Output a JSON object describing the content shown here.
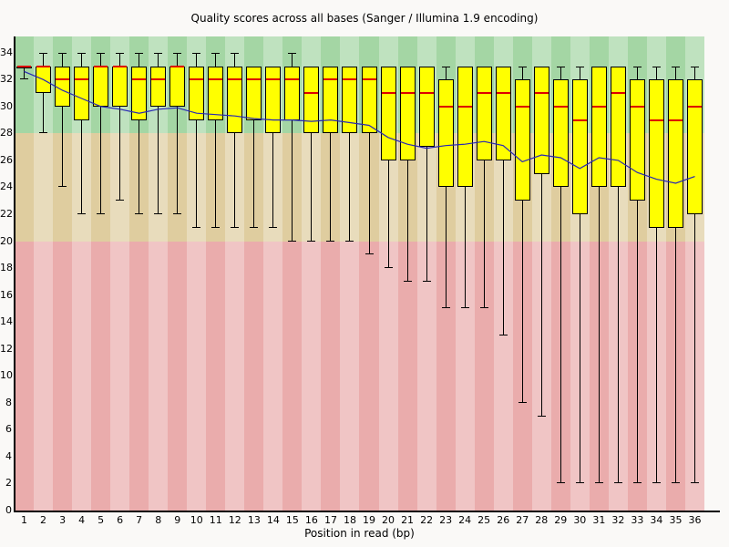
{
  "title": "Quality scores across all bases (Sanger / Illumina 1.9 encoding)",
  "chart_data": {
    "type": "boxplot",
    "title": "Quality scores across all bases (Sanger / Illumina 1.9 encoding)",
    "xlabel": "Position in read (bp)",
    "ylabel": "",
    "x": [
      1,
      2,
      3,
      4,
      5,
      6,
      7,
      8,
      9,
      10,
      11,
      12,
      13,
      14,
      15,
      16,
      17,
      18,
      19,
      20,
      21,
      22,
      23,
      24,
      25,
      26,
      27,
      28,
      29,
      30,
      31,
      32,
      33,
      34,
      35,
      36
    ],
    "y_ticks": [
      0,
      2,
      4,
      6,
      8,
      10,
      12,
      14,
      16,
      18,
      20,
      22,
      24,
      26,
      28,
      30,
      32,
      34
    ],
    "ylim": [
      0,
      35.2
    ],
    "grid": false,
    "legend_position": "none",
    "zones": [
      {
        "label": "good-quality-zone",
        "range": [
          28,
          35.2
        ],
        "color": "#a4d6a4"
      },
      {
        "label": "medium-quality-zone",
        "range": [
          20,
          28
        ],
        "color": "#dfcd9f"
      },
      {
        "label": "bad-quality-zone",
        "range": [
          0,
          20
        ],
        "color": "#eaacac"
      }
    ],
    "series": {
      "lower_whisker": [
        32,
        28,
        24,
        22,
        22,
        23,
        22,
        22,
        22,
        21,
        21,
        21,
        21,
        21,
        20,
        20,
        20,
        20,
        19,
        18,
        17,
        17,
        15,
        15,
        15,
        13,
        8,
        7,
        2,
        2,
        2,
        2,
        2,
        2,
        2,
        2
      ],
      "q1": [
        33,
        31,
        30,
        29,
        30,
        30,
        29,
        30,
        30,
        29,
        29,
        28,
        29,
        28,
        29,
        28,
        28,
        28,
        28,
        26,
        26,
        27,
        24,
        24,
        26,
        26,
        23,
        25,
        24,
        22,
        24,
        24,
        23,
        21,
        21,
        22
      ],
      "median": [
        33,
        33,
        32,
        32,
        33,
        33,
        32,
        32,
        33,
        32,
        32,
        32,
        32,
        32,
        32,
        31,
        32,
        32,
        32,
        31,
        31,
        31,
        30,
        30,
        31,
        31,
        30,
        31,
        30,
        29,
        30,
        31,
        30,
        29,
        29,
        30
      ],
      "q3": [
        33,
        33,
        33,
        33,
        33,
        33,
        33,
        33,
        33,
        33,
        33,
        33,
        33,
        33,
        33,
        33,
        33,
        33,
        33,
        33,
        33,
        33,
        32,
        33,
        33,
        33,
        32,
        33,
        32,
        32,
        33,
        33,
        32,
        32,
        32,
        32
      ],
      "upper_whisker": [
        33,
        34,
        34,
        34,
        34,
        34,
        34,
        34,
        34,
        34,
        34,
        34,
        33,
        33,
        34,
        33,
        33,
        33,
        33,
        33,
        33,
        33,
        33,
        33,
        33,
        33,
        33,
        33,
        33,
        33,
        33,
        33,
        33,
        33,
        33,
        33
      ],
      "mean": [
        32.6,
        32.0,
        31.2,
        30.6,
        30.0,
        29.8,
        29.5,
        29.8,
        29.9,
        29.5,
        29.4,
        29.3,
        29.1,
        29.0,
        29.0,
        28.9,
        29.0,
        28.8,
        28.6,
        27.7,
        27.2,
        26.9,
        27.1,
        27.2,
        27.4,
        27.1,
        25.9,
        26.4,
        26.2,
        25.4,
        26.2,
        26.0,
        25.1,
        24.6,
        24.3,
        24.8
      ]
    },
    "colors": {
      "box_fill": "#ffff00",
      "box_border": "#000000",
      "median": "#dd0000",
      "mean_line": "#2828b4",
      "axis": "#000000",
      "stripe_lighten": "rgba(255,255,255,0.30)"
    }
  }
}
